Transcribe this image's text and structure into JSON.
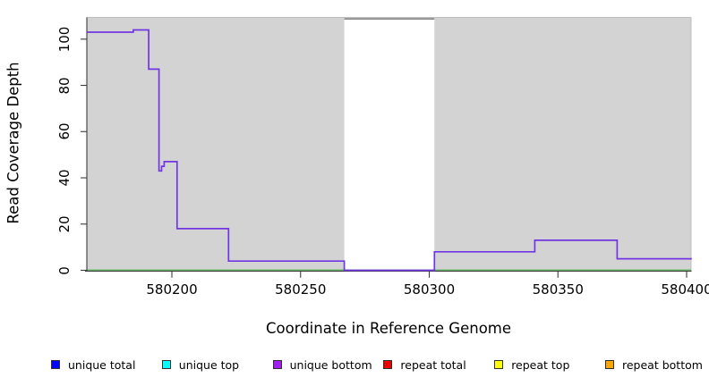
{
  "figure": {
    "background": "#ffffff",
    "plot_background": "#d3d3d3",
    "gap_fill": "#ffffff",
    "gap_top_border": "#8a8a8a",
    "axis_color": "#3c3c3c",
    "line_color": "#7136e2",
    "baseline_color": "#68bd68"
  },
  "chart_data": {
    "type": "line",
    "line_style": "step",
    "title": "",
    "xlabel": "Coordinate in Reference Genome",
    "ylabel": "Read Coverage Depth",
    "xlim": [
      580167,
      580402
    ],
    "ylim": [
      0,
      109
    ],
    "x_ticks": [
      580200,
      580250,
      580300,
      580350,
      580400
    ],
    "x_tick_labels": [
      "580200",
      "580250",
      "580300",
      "580350",
      "580400"
    ],
    "y_ticks": [
      0,
      20,
      40,
      60,
      80,
      100
    ],
    "y_tick_labels": [
      "0",
      "20",
      "40",
      "60",
      "80",
      "100"
    ],
    "grid": false,
    "plot_background": "#d3d3d3",
    "gap_region": {
      "x_start": 580267,
      "x_end": 580302,
      "fill": "#ffffff",
      "note": "white vertical band spanning full plot height; coverage is 0 inside it"
    },
    "series": [
      {
        "name": "coverage step line (purple, matches 'unique bottom' legend color)",
        "color": "#7136e2",
        "steps": [
          {
            "x_start": 580167,
            "x_end": 580185,
            "value": 103
          },
          {
            "x_start": 580185,
            "x_end": 580191,
            "value": 104
          },
          {
            "x_start": 580191,
            "x_end": 580195,
            "value": 87
          },
          {
            "x_start": 580195,
            "x_end": 580196,
            "value": 43
          },
          {
            "x_start": 580196,
            "x_end": 580197,
            "value": 45
          },
          {
            "x_start": 580197,
            "x_end": 580202,
            "value": 47
          },
          {
            "x_start": 580202,
            "x_end": 580222,
            "value": 18
          },
          {
            "x_start": 580222,
            "x_end": 580267,
            "value": 4
          },
          {
            "x_start": 580267,
            "x_end": 580302,
            "value": 0
          },
          {
            "x_start": 580302,
            "x_end": 580341,
            "value": 8
          },
          {
            "x_start": 580341,
            "x_end": 580373,
            "value": 13
          },
          {
            "x_start": 580373,
            "x_end": 580402,
            "value": 5
          }
        ]
      },
      {
        "name": "zero baseline (green horizontal line)",
        "color": "#68bd68",
        "value": 0
      }
    ],
    "legend_position": "bottom",
    "legend": [
      {
        "label": "unique total",
        "color": "#0000ff"
      },
      {
        "label": "unique top",
        "color": "#00ffff"
      },
      {
        "label": "unique bottom",
        "color": "#a020f0"
      },
      {
        "label": "repeat total",
        "color": "#ee0000"
      },
      {
        "label": "repeat top",
        "color": "#ffff00"
      },
      {
        "label": "repeat bottom",
        "color": "#ffa500"
      }
    ]
  }
}
